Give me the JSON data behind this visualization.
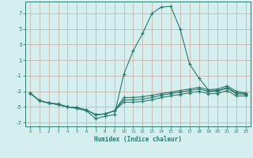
{
  "xlabel": "Humidex (Indice chaleur)",
  "x_values": [
    0,
    1,
    2,
    3,
    4,
    5,
    6,
    7,
    8,
    9,
    10,
    11,
    12,
    13,
    14,
    15,
    16,
    17,
    18,
    19,
    20,
    21,
    22,
    23
  ],
  "line1": [
    -3.2,
    -4.2,
    -4.5,
    -4.6,
    -5.0,
    -5.2,
    -5.5,
    -6.5,
    -6.2,
    -6.0,
    -0.8,
    2.2,
    4.4,
    7.0,
    7.8,
    7.9,
    5.0,
    0.5,
    -1.3,
    -2.8,
    -2.9,
    -2.5,
    -3.2,
    -3.3
  ],
  "line2": [
    -3.2,
    -4.2,
    -4.5,
    -4.7,
    -5.0,
    -5.1,
    -5.4,
    -6.0,
    -5.9,
    -5.5,
    -3.8,
    -3.8,
    -3.7,
    -3.5,
    -3.3,
    -3.1,
    -2.9,
    -2.7,
    -2.5,
    -2.8,
    -2.7,
    -2.3,
    -3.0,
    -3.2
  ],
  "line3": [
    -3.2,
    -4.2,
    -4.5,
    -4.7,
    -5.0,
    -5.1,
    -5.4,
    -6.0,
    -5.9,
    -5.5,
    -4.1,
    -4.1,
    -4.0,
    -3.8,
    -3.5,
    -3.3,
    -3.1,
    -2.9,
    -2.7,
    -3.0,
    -3.0,
    -2.6,
    -3.3,
    -3.4
  ],
  "line4": [
    -3.2,
    -4.2,
    -4.5,
    -4.7,
    -5.0,
    -5.1,
    -5.4,
    -6.0,
    -5.9,
    -5.5,
    -4.4,
    -4.4,
    -4.3,
    -4.1,
    -3.8,
    -3.6,
    -3.4,
    -3.2,
    -3.0,
    -3.3,
    -3.3,
    -2.9,
    -3.6,
    -3.6
  ],
  "line_color": "#2a7a6e",
  "bg_color": "#d4efed",
  "grid_color": "#c4a8a0",
  "ylim": [
    -7.5,
    8.5
  ],
  "xlim": [
    -0.5,
    23.5
  ],
  "yticks": [
    -7,
    -5,
    -3,
    -1,
    1,
    3,
    5,
    7
  ],
  "xticks": [
    0,
    1,
    2,
    3,
    4,
    5,
    6,
    7,
    8,
    9,
    10,
    11,
    12,
    13,
    14,
    15,
    16,
    17,
    18,
    19,
    20,
    21,
    22,
    23
  ]
}
